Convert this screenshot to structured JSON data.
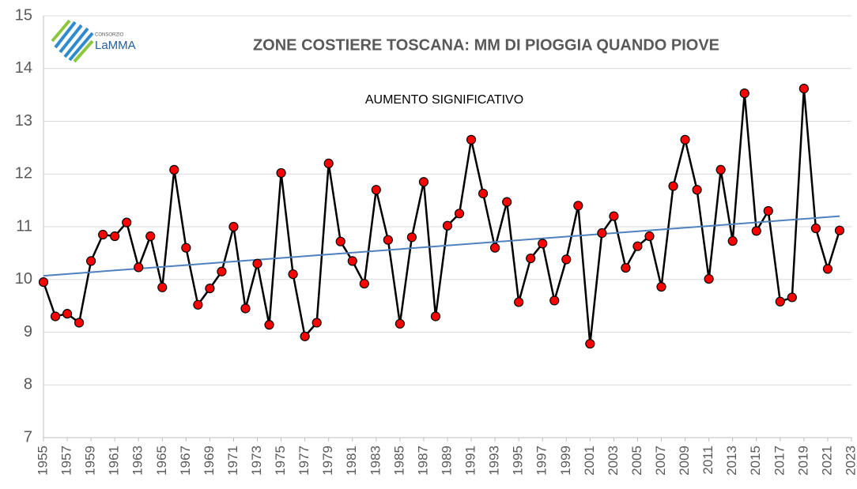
{
  "chart_data": {
    "type": "line",
    "title": "ZONE COSTIERE TOSCANA: MM DI PIOGGIA QUANDO PIOVE",
    "annotations": [
      "AUMENTO SIGNIFICATIVO"
    ],
    "logo": [
      "CONSORZIO",
      "LaMMA"
    ],
    "x": [
      1955,
      1956,
      1957,
      1958,
      1959,
      1960,
      1961,
      1962,
      1963,
      1964,
      1965,
      1966,
      1967,
      1968,
      1969,
      1970,
      1971,
      1972,
      1973,
      1974,
      1975,
      1976,
      1977,
      1978,
      1979,
      1980,
      1981,
      1982,
      1983,
      1984,
      1985,
      1986,
      1987,
      1988,
      1989,
      1990,
      1991,
      1992,
      1993,
      1994,
      1995,
      1996,
      1997,
      1998,
      1999,
      2000,
      2001,
      2002,
      2003,
      2004,
      2005,
      2006,
      2007,
      2008,
      2009,
      2010,
      2011,
      2012,
      2013,
      2014,
      2015,
      2016,
      2017,
      2018,
      2019,
      2020,
      2021,
      2022
    ],
    "values": [
      9.95,
      9.3,
      9.35,
      9.18,
      10.35,
      10.85,
      10.82,
      11.08,
      10.23,
      10.82,
      9.85,
      12.08,
      10.6,
      9.52,
      9.83,
      10.15,
      11.0,
      9.45,
      10.3,
      9.14,
      12.02,
      10.1,
      8.92,
      9.18,
      12.2,
      10.72,
      10.35,
      9.92,
      11.7,
      10.75,
      9.16,
      10.8,
      11.85,
      9.3,
      11.02,
      11.25,
      12.65,
      11.63,
      10.6,
      11.47,
      9.57,
      10.4,
      10.68,
      9.6,
      10.38,
      11.4,
      8.78,
      10.88,
      11.2,
      10.22,
      10.63,
      10.82,
      9.86,
      11.77,
      12.65,
      11.7,
      10.01,
      12.08,
      10.73,
      13.53,
      10.92,
      11.3,
      9.58,
      9.66,
      13.62,
      10.97,
      10.2,
      10.93
    ],
    "color": "#000000",
    "marker_color": "#ff0000",
    "trendline": {
      "x": [
        1955,
        2022
      ],
      "values": [
        10.07,
        11.2
      ],
      "color": "#4f81bd"
    },
    "xlim": [
      1955,
      2023
    ],
    "xticks": [
      1955,
      1957,
      1959,
      1961,
      1963,
      1965,
      1967,
      1969,
      1971,
      1973,
      1975,
      1977,
      1979,
      1981,
      1983,
      1985,
      1987,
      1989,
      1991,
      1993,
      1995,
      1997,
      1999,
      2001,
      2003,
      2005,
      2007,
      2009,
      2011,
      2013,
      2015,
      2017,
      2019,
      2021,
      2023
    ],
    "ylim": [
      7,
      15
    ],
    "yticks": [
      7,
      8,
      9,
      10,
      11,
      12,
      13,
      14,
      15
    ],
    "grid": true
  }
}
